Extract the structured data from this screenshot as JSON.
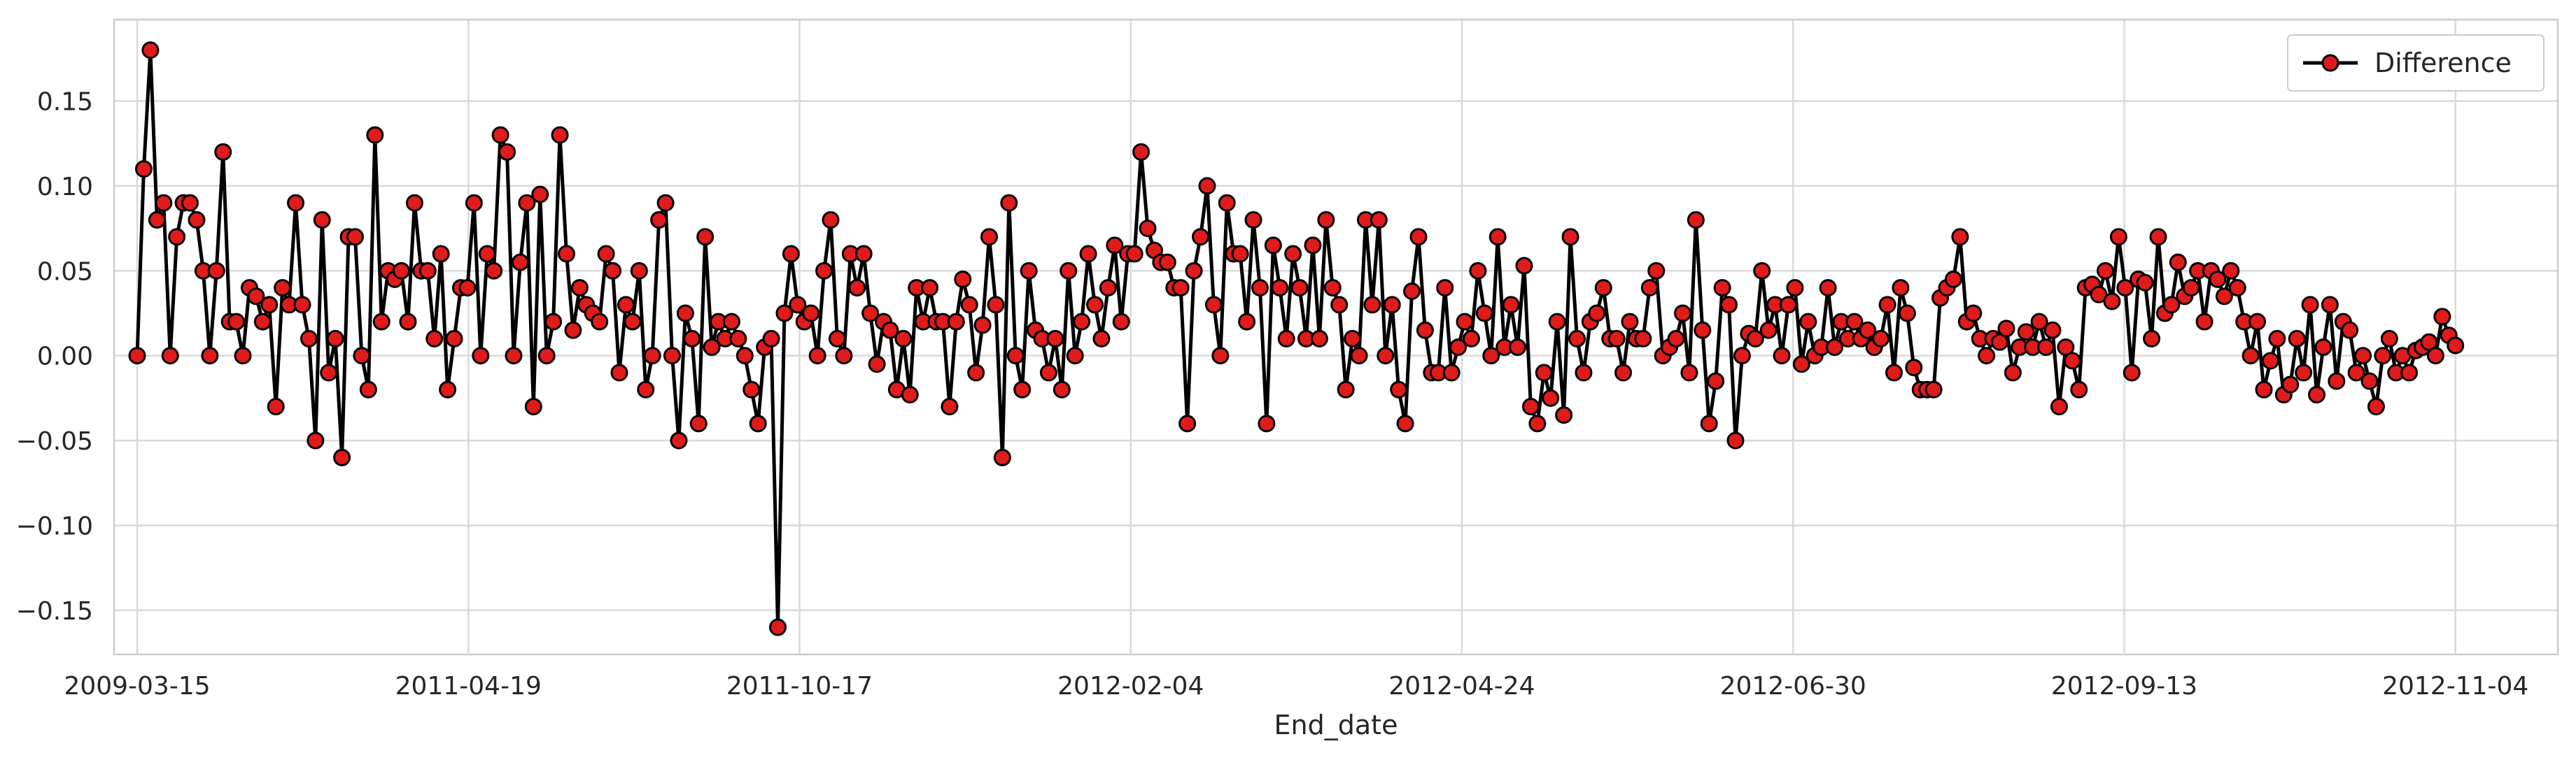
{
  "chart_data": {
    "type": "line",
    "title": "",
    "xlabel": "End_date",
    "ylabel": "",
    "x_tick_labels": [
      "2009-03-15",
      "2011-04-19",
      "2011-10-17",
      "2012-02-04",
      "2012-04-24",
      "2012-06-30",
      "2012-09-13",
      "2012-11-04"
    ],
    "y_ticks": [
      -0.15,
      -0.1,
      -0.05,
      0.0,
      0.05,
      0.1,
      0.15
    ],
    "y_tick_labels": [
      "−0.15",
      "−0.10",
      "−0.05",
      "0.00",
      "0.05",
      "0.10",
      "0.15"
    ],
    "ylim": [
      -0.176,
      0.198
    ],
    "x_range_index": [
      -3.5,
      366.5
    ],
    "grid": true,
    "legend_position": "top-right",
    "marker": "circle",
    "series": [
      {
        "name": "Difference",
        "line_color": "#000000",
        "marker_fill": "#e01b1b",
        "marker_edge": "#000000",
        "values": [
          0.0,
          0.11,
          0.18,
          0.08,
          0.09,
          0.0,
          0.07,
          0.09,
          0.09,
          0.08,
          0.05,
          0.0,
          0.05,
          0.12,
          0.02,
          0.02,
          0.0,
          0.04,
          0.035,
          0.02,
          0.03,
          -0.03,
          0.04,
          0.03,
          0.09,
          0.03,
          0.01,
          -0.05,
          0.08,
          -0.01,
          0.01,
          -0.06,
          0.07,
          0.07,
          0.0,
          -0.02,
          0.13,
          0.02,
          0.05,
          0.045,
          0.05,
          0.02,
          0.09,
          0.05,
          0.05,
          0.01,
          0.06,
          -0.02,
          0.01,
          0.04,
          0.04,
          0.09,
          0.0,
          0.06,
          0.05,
          0.13,
          0.12,
          0.0,
          0.055,
          0.09,
          -0.03,
          0.095,
          0.0,
          0.02,
          0.13,
          0.06,
          0.015,
          0.04,
          0.03,
          0.025,
          0.02,
          0.06,
          0.05,
          -0.01,
          0.03,
          0.02,
          0.05,
          -0.02,
          0.0,
          0.08,
          0.09,
          0.0,
          -0.05,
          0.025,
          0.01,
          -0.04,
          0.07,
          0.005,
          0.02,
          0.01,
          0.02,
          0.01,
          0.0,
          -0.02,
          -0.04,
          0.005,
          0.01,
          -0.16,
          0.025,
          0.06,
          0.03,
          0.02,
          0.025,
          0.0,
          0.05,
          0.08,
          0.01,
          0.0,
          0.06,
          0.04,
          0.06,
          0.025,
          -0.005,
          0.02,
          0.015,
          -0.02,
          0.01,
          -0.023,
          0.04,
          0.02,
          0.04,
          0.02,
          0.02,
          -0.03,
          0.02,
          0.045,
          0.03,
          -0.01,
          0.018,
          0.07,
          0.03,
          -0.06,
          0.09,
          0.0,
          -0.02,
          0.05,
          0.015,
          0.01,
          -0.01,
          0.01,
          -0.02,
          0.05,
          0.0,
          0.02,
          0.06,
          0.03,
          0.01,
          0.04,
          0.065,
          0.02,
          0.06,
          0.06,
          0.12,
          0.075,
          0.062,
          0.055,
          0.055,
          0.04,
          0.04,
          -0.04,
          0.05,
          0.07,
          0.1,
          0.03,
          0.0,
          0.09,
          0.06,
          0.06,
          0.02,
          0.08,
          0.04,
          -0.04,
          0.065,
          0.04,
          0.01,
          0.06,
          0.04,
          0.01,
          0.065,
          0.01,
          0.08,
          0.04,
          0.03,
          -0.02,
          0.01,
          0.0,
          0.08,
          0.03,
          0.08,
          0.0,
          0.03,
          -0.02,
          -0.04,
          0.038,
          0.07,
          0.015,
          -0.01,
          -0.01,
          0.04,
          -0.01,
          0.005,
          0.02,
          0.01,
          0.05,
          0.025,
          0.0,
          0.07,
          0.005,
          0.03,
          0.005,
          0.053,
          -0.03,
          -0.04,
          -0.01,
          -0.025,
          0.02,
          -0.035,
          0.07,
          0.01,
          -0.01,
          0.02,
          0.025,
          0.04,
          0.01,
          0.01,
          -0.01,
          0.02,
          0.01,
          0.01,
          0.04,
          0.05,
          0.0,
          0.005,
          0.01,
          0.025,
          -0.01,
          0.08,
          0.015,
          -0.04,
          -0.015,
          0.04,
          0.03,
          -0.05,
          0.0,
          0.013,
          0.01,
          0.05,
          0.015,
          0.03,
          0.0,
          0.03,
          0.04,
          -0.005,
          0.02,
          0.0,
          0.005,
          0.04,
          0.005,
          0.02,
          0.01,
          0.02,
          0.01,
          0.015,
          0.005,
          0.01,
          0.03,
          -0.01,
          0.04,
          0.025,
          -0.007,
          -0.02,
          -0.02,
          -0.02,
          0.034,
          0.04,
          0.045,
          0.07,
          0.02,
          0.025,
          0.01,
          0.0,
          0.01,
          0.008,
          0.016,
          -0.01,
          0.005,
          0.014,
          0.005,
          0.02,
          0.005,
          0.015,
          -0.03,
          0.005,
          -0.003,
          -0.02,
          0.04,
          0.042,
          0.036,
          0.05,
          0.032,
          0.07,
          0.04,
          -0.01,
          0.045,
          0.043,
          0.01,
          0.07,
          0.025,
          0.03,
          0.055,
          0.035,
          0.04,
          0.05,
          0.02,
          0.05,
          0.045,
          0.035,
          0.05,
          0.04,
          0.02,
          0.0,
          0.02,
          -0.02,
          -0.003,
          0.01,
          -0.023,
          -0.017,
          0.01,
          -0.01,
          0.03,
          -0.023,
          0.005,
          0.03,
          -0.015,
          0.02,
          0.015,
          -0.01,
          0.0,
          -0.015,
          -0.03,
          0.0,
          0.01,
          -0.01,
          0.0,
          -0.01,
          0.003,
          0.005,
          0.008,
          0.0,
          0.023,
          0.012,
          0.006
        ]
      }
    ]
  }
}
